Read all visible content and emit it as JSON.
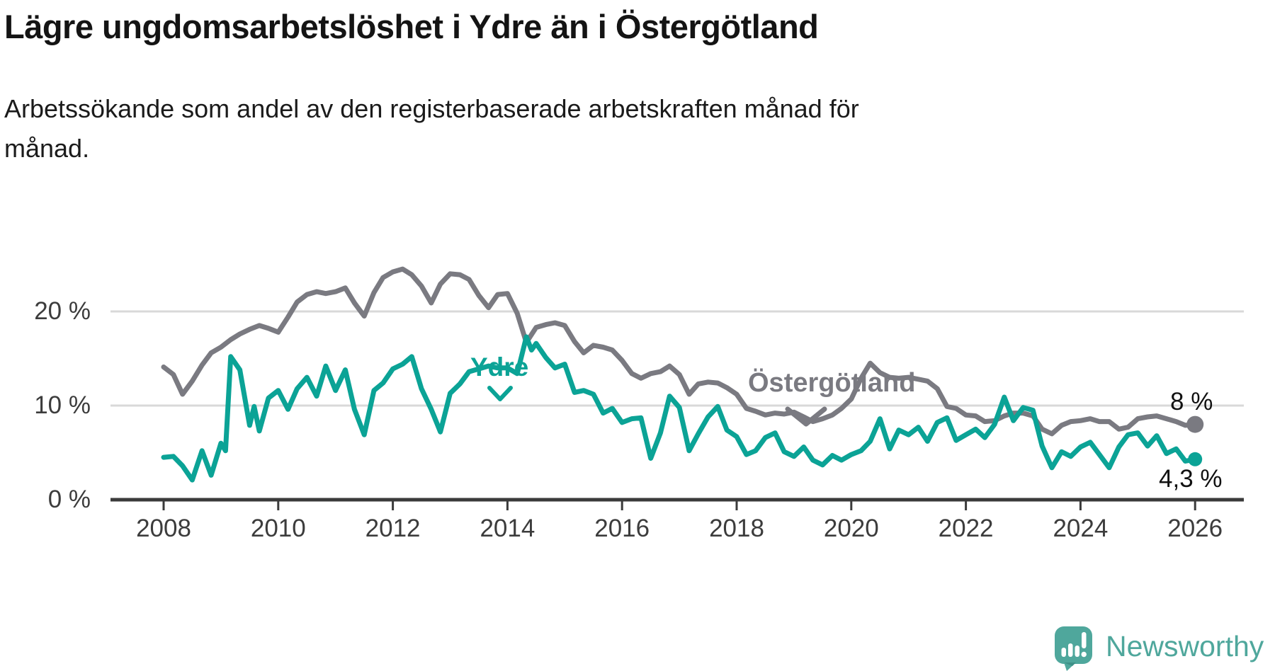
{
  "header": {
    "title": "Lägre ungdomsarbetslöshet i Ydre än i Östergötland",
    "subtitle_line1": "Arbetssökande som andel av den registerbaserade arbetskraften månad för",
    "subtitle_line2": "månad."
  },
  "branding": {
    "logo_text": "Newsworthy",
    "logo_color": "#4fa79c",
    "logo_icon": "newsworthy-speech-bubble-bar-chart-icon"
  },
  "colors": {
    "ostergotland_line": "#7a7a81",
    "ydre_line": "#0ba396",
    "gridline": "#d9d9d9",
    "axis": "#3b3b3b",
    "tick_label": "#3c3c3c",
    "end_label": "#111111"
  },
  "chart_data": {
    "type": "line",
    "title": "Lägre ungdomsarbetslöshet i Ydre än i Östergötland",
    "subtitle": "Arbetssökande som andel av den registerbaserade arbetskraften månad för månad.",
    "xlabel": "",
    "ylabel": "",
    "grid": "horizontal-only",
    "legend": "inline-series-labels",
    "ylim": [
      0,
      26
    ],
    "xlim_years": [
      2007.1,
      2026.8
    ],
    "x_ticks": [
      2008,
      2010,
      2012,
      2014,
      2016,
      2018,
      2020,
      2022,
      2024,
      2026
    ],
    "y_ticks": [
      {
        "value": 0,
        "label": "0 %"
      },
      {
        "value": 10,
        "label": "10 %"
      },
      {
        "value": 20,
        "label": "20 %"
      }
    ],
    "series": [
      {
        "name": "Östergötland",
        "label_annotation": "Östergötland",
        "end_label": "8 %",
        "end_value": 8.0,
        "color": "#7a7a81",
        "points": [
          [
            2008,
            14.1
          ],
          [
            2008.17,
            13.3
          ],
          [
            2008.33,
            11.2
          ],
          [
            2008.5,
            12.6
          ],
          [
            2008.67,
            14.3
          ],
          [
            2008.83,
            15.6
          ],
          [
            2009,
            16.2
          ],
          [
            2009.17,
            17.0
          ],
          [
            2009.33,
            17.6
          ],
          [
            2009.5,
            18.1
          ],
          [
            2009.67,
            18.5
          ],
          [
            2009.83,
            18.2
          ],
          [
            2010,
            17.8
          ],
          [
            2010.17,
            19.4
          ],
          [
            2010.33,
            21.0
          ],
          [
            2010.5,
            21.8
          ],
          [
            2010.67,
            22.1
          ],
          [
            2010.83,
            21.9
          ],
          [
            2011,
            22.1
          ],
          [
            2011.17,
            22.5
          ],
          [
            2011.33,
            20.9
          ],
          [
            2011.5,
            19.5
          ],
          [
            2011.67,
            22.0
          ],
          [
            2011.83,
            23.6
          ],
          [
            2012,
            24.2
          ],
          [
            2012.17,
            24.5
          ],
          [
            2012.33,
            23.9
          ],
          [
            2012.5,
            22.7
          ],
          [
            2012.67,
            20.9
          ],
          [
            2012.83,
            22.9
          ],
          [
            2013,
            24.0
          ],
          [
            2013.17,
            23.9
          ],
          [
            2013.33,
            23.4
          ],
          [
            2013.5,
            21.7
          ],
          [
            2013.67,
            20.4
          ],
          [
            2013.83,
            21.8
          ],
          [
            2014,
            21.9
          ],
          [
            2014.17,
            19.8
          ],
          [
            2014.33,
            16.7
          ],
          [
            2014.5,
            18.3
          ],
          [
            2014.67,
            18.6
          ],
          [
            2014.83,
            18.8
          ],
          [
            2015,
            18.5
          ],
          [
            2015.17,
            16.8
          ],
          [
            2015.33,
            15.6
          ],
          [
            2015.5,
            16.4
          ],
          [
            2015.67,
            16.2
          ],
          [
            2015.83,
            15.9
          ],
          [
            2016,
            14.8
          ],
          [
            2016.17,
            13.4
          ],
          [
            2016.33,
            12.9
          ],
          [
            2016.5,
            13.4
          ],
          [
            2016.67,
            13.6
          ],
          [
            2016.83,
            14.2
          ],
          [
            2017,
            13.3
          ],
          [
            2017.17,
            11.2
          ],
          [
            2017.33,
            12.3
          ],
          [
            2017.5,
            12.5
          ],
          [
            2017.67,
            12.4
          ],
          [
            2017.83,
            11.9
          ],
          [
            2018,
            11.2
          ],
          [
            2018.17,
            9.7
          ],
          [
            2018.33,
            9.4
          ],
          [
            2018.5,
            9.0
          ],
          [
            2018.67,
            9.2
          ],
          [
            2018.83,
            9.1
          ],
          [
            2019,
            9.3
          ],
          [
            2019.17,
            8.8
          ],
          [
            2019.33,
            8.3
          ],
          [
            2019.5,
            8.6
          ],
          [
            2019.67,
            9.0
          ],
          [
            2019.83,
            9.7
          ],
          [
            2020,
            10.7
          ],
          [
            2020.17,
            12.9
          ],
          [
            2020.33,
            14.5
          ],
          [
            2020.5,
            13.5
          ],
          [
            2020.67,
            13.0
          ],
          [
            2020.83,
            12.9
          ],
          [
            2021,
            13.0
          ],
          [
            2021.17,
            12.8
          ],
          [
            2021.33,
            12.6
          ],
          [
            2021.5,
            11.8
          ],
          [
            2021.67,
            9.9
          ],
          [
            2021.83,
            9.7
          ],
          [
            2022,
            9.0
          ],
          [
            2022.17,
            8.9
          ],
          [
            2022.33,
            8.3
          ],
          [
            2022.5,
            8.4
          ],
          [
            2022.67,
            8.9
          ],
          [
            2022.83,
            9.2
          ],
          [
            2023,
            9.2
          ],
          [
            2023.17,
            8.9
          ],
          [
            2023.33,
            7.5
          ],
          [
            2023.5,
            7.0
          ],
          [
            2023.67,
            7.9
          ],
          [
            2023.83,
            8.3
          ],
          [
            2024,
            8.4
          ],
          [
            2024.17,
            8.6
          ],
          [
            2024.33,
            8.3
          ],
          [
            2024.5,
            8.3
          ],
          [
            2024.67,
            7.5
          ],
          [
            2024.83,
            7.7
          ],
          [
            2025,
            8.6
          ],
          [
            2025.17,
            8.8
          ],
          [
            2025.33,
            8.9
          ],
          [
            2025.5,
            8.6
          ],
          [
            2025.67,
            8.3
          ],
          [
            2025.83,
            7.9
          ],
          [
            2026,
            8.0
          ]
        ]
      },
      {
        "name": "Ydre",
        "label_annotation": "Ydre",
        "end_label": "4,3 %",
        "end_value": 4.3,
        "color": "#0ba396",
        "points": [
          [
            2008,
            4.5
          ],
          [
            2008.17,
            4.6
          ],
          [
            2008.33,
            3.6
          ],
          [
            2008.5,
            2.1
          ],
          [
            2008.67,
            5.2
          ],
          [
            2008.83,
            2.6
          ],
          [
            2009,
            6.0
          ],
          [
            2009.08,
            5.2
          ],
          [
            2009.17,
            15.2
          ],
          [
            2009.33,
            13.8
          ],
          [
            2009.5,
            7.9
          ],
          [
            2009.58,
            9.9
          ],
          [
            2009.67,
            7.3
          ],
          [
            2009.83,
            10.8
          ],
          [
            2010,
            11.6
          ],
          [
            2010.17,
            9.6
          ],
          [
            2010.33,
            11.8
          ],
          [
            2010.5,
            13.0
          ],
          [
            2010.67,
            11.0
          ],
          [
            2010.83,
            14.2
          ],
          [
            2011,
            11.6
          ],
          [
            2011.17,
            13.8
          ],
          [
            2011.33,
            9.6
          ],
          [
            2011.5,
            6.9
          ],
          [
            2011.67,
            11.6
          ],
          [
            2011.83,
            12.4
          ],
          [
            2012,
            13.9
          ],
          [
            2012.17,
            14.4
          ],
          [
            2012.33,
            15.2
          ],
          [
            2012.5,
            11.8
          ],
          [
            2012.67,
            9.6
          ],
          [
            2012.83,
            7.2
          ],
          [
            2013,
            11.3
          ],
          [
            2013.17,
            12.3
          ],
          [
            2013.33,
            13.6
          ],
          [
            2013.5,
            13.9
          ],
          [
            2013.67,
            14.2
          ],
          [
            2013.83,
            14.0
          ],
          [
            2014,
            14.0
          ],
          [
            2014.17,
            13.4
          ],
          [
            2014.33,
            17.3
          ],
          [
            2014.42,
            15.9
          ],
          [
            2014.5,
            16.6
          ],
          [
            2014.67,
            15.1
          ],
          [
            2014.83,
            14.0
          ],
          [
            2015,
            14.4
          ],
          [
            2015.17,
            11.4
          ],
          [
            2015.33,
            11.6
          ],
          [
            2015.5,
            11.2
          ],
          [
            2015.67,
            9.2
          ],
          [
            2015.83,
            9.7
          ],
          [
            2016,
            8.2
          ],
          [
            2016.17,
            8.6
          ],
          [
            2016.33,
            8.7
          ],
          [
            2016.5,
            4.4
          ],
          [
            2016.67,
            7.1
          ],
          [
            2016.83,
            11.0
          ],
          [
            2017,
            9.8
          ],
          [
            2017.17,
            5.2
          ],
          [
            2017.33,
            7.0
          ],
          [
            2017.5,
            8.8
          ],
          [
            2017.67,
            9.9
          ],
          [
            2017.83,
            7.4
          ],
          [
            2018,
            6.7
          ],
          [
            2018.17,
            4.8
          ],
          [
            2018.33,
            5.2
          ],
          [
            2018.5,
            6.6
          ],
          [
            2018.67,
            7.1
          ],
          [
            2018.83,
            5.1
          ],
          [
            2019,
            4.6
          ],
          [
            2019.17,
            5.6
          ],
          [
            2019.33,
            4.2
          ],
          [
            2019.5,
            3.7
          ],
          [
            2019.67,
            4.7
          ],
          [
            2019.83,
            4.2
          ],
          [
            2020,
            4.8
          ],
          [
            2020.17,
            5.2
          ],
          [
            2020.33,
            6.2
          ],
          [
            2020.5,
            8.6
          ],
          [
            2020.67,
            5.4
          ],
          [
            2020.83,
            7.4
          ],
          [
            2021,
            6.9
          ],
          [
            2021.17,
            7.7
          ],
          [
            2021.33,
            6.2
          ],
          [
            2021.5,
            8.2
          ],
          [
            2021.67,
            8.7
          ],
          [
            2021.83,
            6.3
          ],
          [
            2022,
            6.9
          ],
          [
            2022.17,
            7.5
          ],
          [
            2022.33,
            6.6
          ],
          [
            2022.5,
            8.0
          ],
          [
            2022.67,
            10.9
          ],
          [
            2022.83,
            8.4
          ],
          [
            2023,
            9.8
          ],
          [
            2023.17,
            9.5
          ],
          [
            2023.33,
            5.7
          ],
          [
            2023.5,
            3.4
          ],
          [
            2023.67,
            5.1
          ],
          [
            2023.83,
            4.6
          ],
          [
            2024,
            5.6
          ],
          [
            2024.17,
            6.1
          ],
          [
            2024.33,
            4.8
          ],
          [
            2024.5,
            3.4
          ],
          [
            2024.67,
            5.6
          ],
          [
            2024.83,
            6.9
          ],
          [
            2025,
            7.1
          ],
          [
            2025.17,
            5.7
          ],
          [
            2025.33,
            6.8
          ],
          [
            2025.5,
            4.9
          ],
          [
            2025.67,
            5.4
          ],
          [
            2025.83,
            4.1
          ],
          [
            2026,
            4.3
          ]
        ]
      }
    ]
  }
}
